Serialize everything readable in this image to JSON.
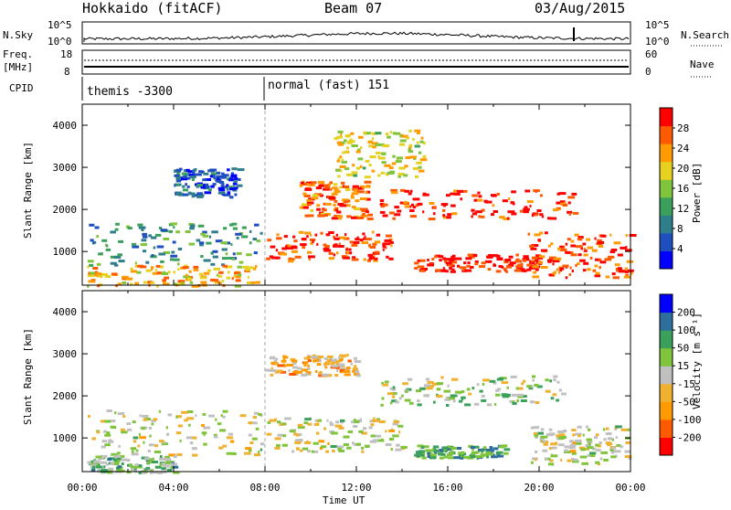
{
  "header": {
    "station": "Hokkaido (fitACF)",
    "beam": "Beam 07",
    "date": "03/Aug/2015"
  },
  "strip_labels": {
    "nsky": "N.Sky",
    "nsky_ticks": [
      "10^5",
      "10^0"
    ],
    "nsearch": "N.Search",
    "nsearch_ticks": [
      "10^5",
      "10^0"
    ],
    "freq_top": "Freq.",
    "freq_bottom": "[MHz]",
    "freq_ticks": [
      "18",
      "8"
    ],
    "nave": "Nave",
    "nave_ticks": [
      "60",
      "0"
    ],
    "cpid": "CPID",
    "cpid_modes": [
      "themis -3300",
      "normal (fast) 151"
    ]
  },
  "chart_data": [
    {
      "type": "heatmap",
      "panel": "power",
      "ylabel": "Slant Range [km]",
      "xlabel": "Time UT",
      "x_ticks": [
        "00:00",
        "04:00",
        "08:00",
        "12:00",
        "16:00",
        "20:00",
        "00:00"
      ],
      "x_range_hours": [
        0,
        24
      ],
      "y_ticks": [
        1000,
        2000,
        3000,
        4000
      ],
      "y_range": [
        200,
        4500
      ],
      "colorbar_label": "Power [dB]",
      "colorbar_ticks": [
        "28",
        "24",
        "20",
        "16",
        "12",
        "8",
        "4"
      ],
      "colorbar_colors": [
        "#0000ff",
        "#1f4fbf",
        "#2e7e8c",
        "#3aa05c",
        "#7fc43a",
        "#e6d020",
        "#ff9a00",
        "#ff5a00",
        "#ff0000"
      ],
      "bands": [
        {
          "t0": 0.2,
          "t1": 7.8,
          "r0": 700,
          "r1": 1700,
          "level": 0.35
        },
        {
          "t0": 0.2,
          "t1": 7.8,
          "r0": 200,
          "r1": 700,
          "level": 0.7
        },
        {
          "t0": 4.0,
          "t1": 6.8,
          "r0": 2300,
          "r1": 3000,
          "level": 0.2
        },
        {
          "t0": 8.0,
          "t1": 13.5,
          "r0": 800,
          "r1": 1500,
          "level": 0.85
        },
        {
          "t0": 9.5,
          "t1": 12.5,
          "r0": 1800,
          "r1": 2700,
          "level": 0.8
        },
        {
          "t0": 13.0,
          "t1": 21.5,
          "r0": 1800,
          "r1": 2500,
          "level": 0.9
        },
        {
          "t0": 14.5,
          "t1": 20.0,
          "r0": 550,
          "r1": 950,
          "level": 0.95
        },
        {
          "t0": 19.5,
          "t1": 24.0,
          "r0": 400,
          "r1": 1500,
          "level": 0.85
        },
        {
          "t0": 11.0,
          "t1": 15.0,
          "r0": 2800,
          "r1": 3900,
          "level": 0.6
        }
      ]
    },
    {
      "type": "heatmap",
      "panel": "velocity",
      "ylabel": "Slant Range [km]",
      "xlabel": "Time UT",
      "x_ticks": [
        "00:00",
        "04:00",
        "08:00",
        "12:00",
        "16:00",
        "20:00",
        "00:00"
      ],
      "x_range_hours": [
        0,
        24
      ],
      "y_ticks": [
        1000,
        2000,
        3000,
        4000
      ],
      "y_range": [
        200,
        4500
      ],
      "colorbar_label": "Velocity [m s⁻¹]",
      "colorbar_ticks": [
        "200",
        "100",
        "50",
        "15",
        "-15",
        "-50",
        "-100",
        "-200"
      ],
      "colorbar_colors": [
        "#ff0000",
        "#ff5a00",
        "#ff9a00",
        "#f0b030",
        "#c0c0c0",
        "#7fc43a",
        "#3aa05c",
        "#2e6e9c",
        "#0000ff"
      ],
      "bands": [
        {
          "t0": 0.2,
          "t1": 7.8,
          "r0": 600,
          "r1": 1700,
          "level": 0.5
        },
        {
          "t0": 0.2,
          "t1": 4.0,
          "r0": 200,
          "r1": 600,
          "level": 0.62
        },
        {
          "t0": 8.0,
          "t1": 14.0,
          "r0": 700,
          "r1": 1500,
          "level": 0.5
        },
        {
          "t0": 13.0,
          "t1": 21.0,
          "r0": 1800,
          "r1": 2500,
          "level": 0.55
        },
        {
          "t0": 14.5,
          "t1": 18.5,
          "r0": 550,
          "r1": 850,
          "level": 0.72
        },
        {
          "t0": 19.5,
          "t1": 24.0,
          "r0": 400,
          "r1": 1300,
          "level": 0.5
        },
        {
          "t0": 8.0,
          "t1": 12.0,
          "r0": 2500,
          "r1": 3000,
          "level": 0.38
        }
      ]
    }
  ]
}
